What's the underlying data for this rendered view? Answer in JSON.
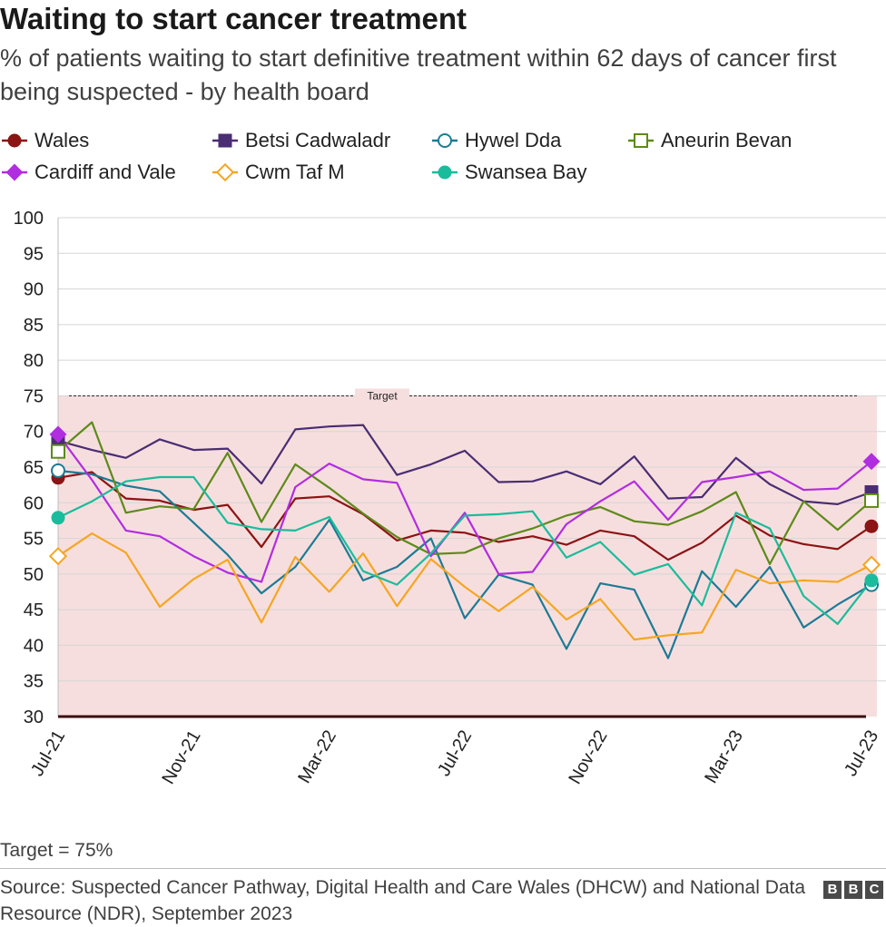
{
  "header": {
    "title": "Waiting to start cancer treatment",
    "subtitle": "% of patients waiting to start definitive treatment within 62 days of cancer first being suspected - by health board"
  },
  "footer": {
    "note": "Target = 75%",
    "source": "Source: Suspected Cancer Pathway, Digital Health and Care Wales (DHCW) and National Data Resource (NDR), September 2023",
    "logo_letters": [
      "B",
      "B",
      "C"
    ]
  },
  "chart_data": {
    "type": "line",
    "title": "Waiting to start cancer treatment",
    "subtitle": "% of patients waiting to start definitive treatment within 62 days of cancer first being suspected - by health board",
    "ylim": [
      30,
      100
    ],
    "yticks": [
      100,
      95,
      90,
      85,
      80,
      75,
      70,
      65,
      60,
      55,
      50,
      45,
      40,
      35,
      30
    ],
    "grid": true,
    "legend_position": "top",
    "x": [
      "Jul-21",
      "Aug-21",
      "Sep-21",
      "Oct-21",
      "Nov-21",
      "Dec-21",
      "Jan-22",
      "Feb-22",
      "Mar-22",
      "Apr-22",
      "May-22",
      "Jun-22",
      "Jul-22",
      "Aug-22",
      "Sep-22",
      "Oct-22",
      "Nov-22",
      "Dec-22",
      "Jan-23",
      "Feb-23",
      "Mar-23",
      "Apr-23",
      "May-23",
      "Jun-23",
      "Jul-23"
    ],
    "xtick_labels": [
      "Jul-21",
      "Nov-21",
      "Mar-22",
      "Jul-22",
      "Nov-22",
      "Mar-23",
      "Jul-23"
    ],
    "target": {
      "value": 75,
      "label": "Target"
    },
    "shaded_area": {
      "from": 30,
      "to": 75,
      "color": "#f7dede"
    },
    "series": [
      {
        "name": "Wales",
        "color": "#8b1414",
        "marker": "circle-filled",
        "values": [
          63.5,
          64.3,
          60.6,
          60.3,
          59.0,
          59.7,
          53.8,
          60.6,
          60.9,
          58.4,
          54.7,
          56.1,
          55.8,
          54.5,
          55.3,
          54.1,
          56.1,
          55.3,
          52.0,
          54.4,
          58.2,
          55.4,
          54.2,
          53.5,
          56.7
        ]
      },
      {
        "name": "Betsi Cadwaladr",
        "color": "#4a2d73",
        "marker": "square-filled",
        "values": [
          68.7,
          67.4,
          66.3,
          68.9,
          67.4,
          67.6,
          62.7,
          70.3,
          70.7,
          70.9,
          63.9,
          65.4,
          67.3,
          62.9,
          63.0,
          64.4,
          62.6,
          66.5,
          60.6,
          60.8,
          66.3,
          62.6,
          60.2,
          59.8,
          61.5
        ]
      },
      {
        "name": "Hywel Dda",
        "color": "#1c7b95",
        "marker": "circle-open",
        "values": [
          64.5,
          64.0,
          62.4,
          61.6,
          57.2,
          52.7,
          47.3,
          51.0,
          57.6,
          49.1,
          51.0,
          55.0,
          43.8,
          49.9,
          48.5,
          39.5,
          48.7,
          47.8,
          38.2,
          50.4,
          45.4,
          51.0,
          42.5,
          45.7,
          48.5
        ]
      },
      {
        "name": "Aneurin Bevan",
        "color": "#5d8a1a",
        "marker": "square-open",
        "values": [
          67.2,
          71.3,
          58.6,
          59.5,
          59.1,
          67.0,
          57.3,
          65.4,
          62.1,
          58.5,
          55.2,
          52.8,
          53.0,
          55.0,
          56.4,
          58.2,
          59.4,
          57.4,
          56.9,
          58.8,
          61.5,
          51.4,
          60.2,
          56.2,
          60.3
        ]
      },
      {
        "name": "Cardiff and Vale",
        "color": "#b12de0",
        "marker": "diamond-filled",
        "values": [
          69.6,
          63.2,
          56.1,
          55.3,
          52.5,
          50.2,
          48.9,
          62.2,
          65.5,
          63.3,
          62.8,
          52.5,
          58.6,
          50.0,
          50.3,
          57.0,
          60.2,
          63.0,
          57.6,
          62.9,
          63.6,
          64.4,
          61.8,
          62.0,
          65.8
        ]
      },
      {
        "name": "Cwm Taf M",
        "color": "#f5a623",
        "marker": "diamond-open",
        "values": [
          52.5,
          55.7,
          53.0,
          45.4,
          49.3,
          52.0,
          43.2,
          52.4,
          47.5,
          52.9,
          45.5,
          52.1,
          48.2,
          44.8,
          48.2,
          43.6,
          46.5,
          40.8,
          41.4,
          41.8,
          50.6,
          48.7,
          49.1,
          48.9,
          51.3
        ]
      },
      {
        "name": "Swansea Bay",
        "color": "#1abc9c",
        "marker": "circle-filled",
        "values": [
          57.9,
          60.2,
          63.0,
          63.6,
          63.6,
          57.2,
          56.3,
          56.1,
          58.0,
          50.4,
          48.5,
          52.9,
          58.2,
          58.4,
          58.8,
          52.3,
          54.5,
          49.9,
          51.4,
          45.6,
          58.6,
          56.4,
          46.9,
          43.0,
          49.1
        ]
      }
    ]
  }
}
